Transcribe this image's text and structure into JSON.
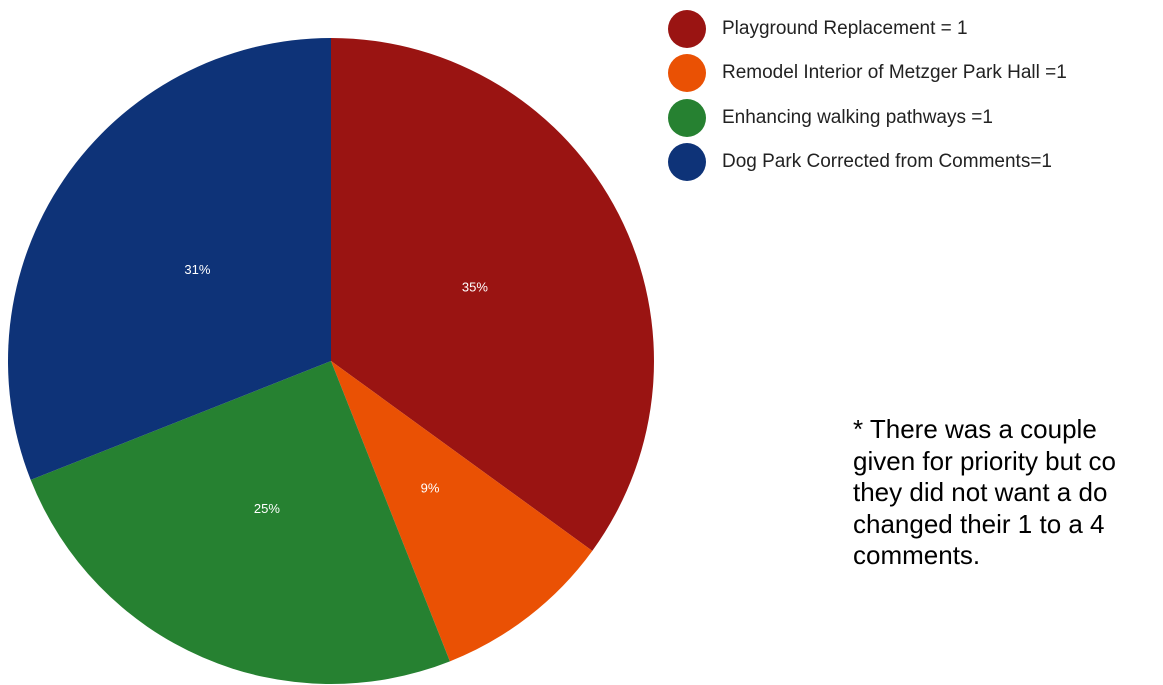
{
  "colors": {
    "playground": "#9a1412",
    "remodel": "#ea5104",
    "walking": "#268131",
    "dogpark": "#0e3378"
  },
  "legend": [
    {
      "label": "Playground Replacement = 1",
      "color_key": "playground"
    },
    {
      "label": "Remodel Interior of Metzger Park Hall =1",
      "color_key": "remodel"
    },
    {
      "label": "Enhancing walking pathways =1",
      "color_key": "walking"
    },
    {
      "label": "Dog Park Corrected from Comments=1",
      "color_key": "dogpark"
    }
  ],
  "note": {
    "lines": [
      "* There was a couple",
      "given for priority but co",
      "they did not want a do",
      "changed their 1 to a 4",
      "comments."
    ]
  },
  "chart_data": {
    "type": "pie",
    "categories": [
      "Playground Replacement = 1",
      "Remodel Interior of Metzger Park Hall =1",
      "Enhancing walking pathways =1",
      "Dog Park Corrected from Comments=1"
    ],
    "values": [
      35,
      9,
      25,
      31
    ],
    "labels": [
      "35%",
      "9%",
      "25%",
      "31%"
    ],
    "colors": [
      "#9a1412",
      "#ea5104",
      "#268131",
      "#0e3378"
    ],
    "start_angle_deg": 0,
    "direction": "clockwise",
    "legend_position": "top-right"
  }
}
